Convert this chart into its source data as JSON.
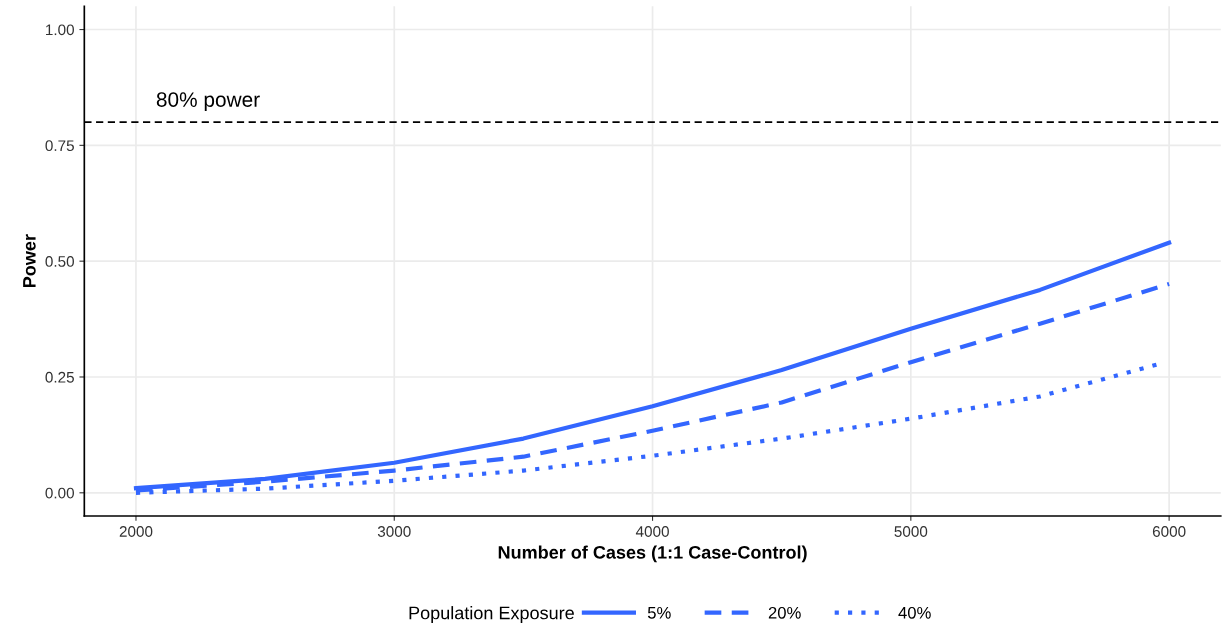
{
  "chart_data": {
    "type": "line",
    "xlabel": "Number of Cases (1:1 Case-Control)",
    "ylabel": "Power",
    "legend_title": "Population Exposure",
    "series": [
      {
        "name": "5%",
        "color": "#3366ff",
        "line_style": "solid",
        "x": [
          2000,
          2500,
          3000,
          3500,
          4000,
          4500,
          5000,
          5500,
          6000
        ],
        "values": [
          0.01,
          0.03,
          0.065,
          0.117,
          0.187,
          0.265,
          0.354,
          0.438,
          0.54
        ]
      },
      {
        "name": "20%",
        "color": "#3366ff",
        "line_style": "dashed",
        "x": [
          2000,
          2500,
          3000,
          3500,
          4000,
          4500,
          5000,
          5500,
          6000
        ],
        "values": [
          0.005,
          0.024,
          0.048,
          0.078,
          0.134,
          0.195,
          0.282,
          0.365,
          0.451
        ]
      },
      {
        "name": "40%",
        "color": "#3366ff",
        "line_style": "dotted",
        "x": [
          2000,
          2500,
          3000,
          3500,
          4000,
          4500,
          5000,
          5500,
          5960
        ],
        "values": [
          0.0,
          0.009,
          0.026,
          0.048,
          0.08,
          0.117,
          0.16,
          0.208,
          0.278
        ]
      }
    ],
    "xlim": [
      1800,
      6200
    ],
    "xticks": [
      2000,
      3000,
      4000,
      5000,
      6000
    ],
    "ylim": [
      -0.05,
      1.05
    ],
    "yticks": [
      {
        "value": 0,
        "label": "0.00"
      },
      {
        "value": 0.25,
        "label": "0.25"
      },
      {
        "value": 0.5,
        "label": "0.50"
      },
      {
        "value": 0.75,
        "label": "0.75"
      },
      {
        "value": 1.0,
        "label": "1.00"
      }
    ],
    "ref_lines": [
      {
        "axis": "y",
        "value": 0.8,
        "label": "80% power",
        "color": "#000000",
        "line_style": "dashed"
      }
    ],
    "grid": true,
    "legend": "bottom"
  }
}
